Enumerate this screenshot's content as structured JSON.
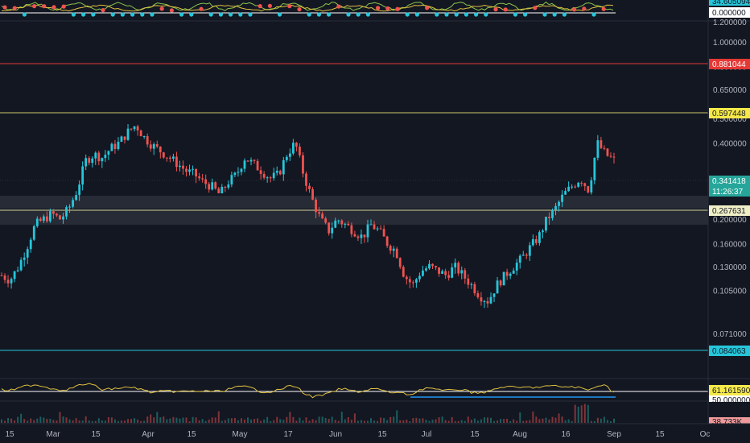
{
  "colors": {
    "background": "#131722",
    "up": "#26c6da",
    "down": "#ef5350",
    "support_line": "#26c6da",
    "resistance_line": "#e53935",
    "fib_line": "#c8c86b",
    "mid_line": "#e6e6a8",
    "rsi_line": "#e0c040",
    "osc_green": "#8bc34a",
    "osc_dot_up": "#26c6da",
    "osc_dot_down": "#ef5350",
    "zone": "#2a2e39"
  },
  "price_axis": {
    "ticks": [
      "1.200000",
      "1.000000",
      "0.800000",
      "0.650000",
      "0.500000",
      "0.400000",
      "0.200000",
      "0.160000",
      "0.130000",
      "0.105000",
      "0.071000"
    ],
    "tick_values": [
      1.2,
      1.0,
      0.8,
      0.65,
      0.5,
      0.4,
      0.2,
      0.16,
      0.13,
      0.105,
      0.071
    ]
  },
  "date_axis": {
    "labels": [
      "15",
      "Mar",
      "15",
      "Apr",
      "15",
      "May",
      "17",
      "Jun",
      "15",
      "Jul",
      "15",
      "Aug",
      "16",
      "Sep",
      "15",
      "Oc"
    ]
  },
  "price_tags": {
    "resistance": {
      "label": "0.881044",
      "value": 0.881044,
      "bg": "#e53935",
      "fg": "#ffffff"
    },
    "fib": {
      "label": "0.597448",
      "value": 0.597448,
      "bg": "#f5e94a",
      "fg": "#131722"
    },
    "current": {
      "label": "0.341418",
      "countdown": "11:26:37",
      "value": 0.341418,
      "bg": "#26a69a",
      "fg": "#ffffff"
    },
    "mid": {
      "label": "0.267631",
      "value": 0.267631,
      "bg": "#f0f0c8",
      "fg": "#131722"
    },
    "support": {
      "label": "0.084063",
      "value": 0.084063,
      "bg": "#26c6da",
      "fg": "#131722"
    }
  },
  "top_panel": {
    "tag_top": {
      "label": "34.605094",
      "bg": "#26c6da",
      "fg": "#131722"
    },
    "tag_zero": {
      "label": "0.000000",
      "bg": "#ffffff",
      "fg": "#131722"
    }
  },
  "rsi_panel": {
    "tag_value": {
      "label": "61.161590",
      "bg": "#f5e94a",
      "fg": "#131722"
    },
    "tag_mid": {
      "label": "50.000000",
      "bg": "#ffffff",
      "fg": "#131722"
    }
  },
  "volume_panel": {
    "tag_value": {
      "label": "38.733K",
      "bg": "#ef9a9a",
      "fg": "#131722"
    }
  },
  "chart_data": {
    "type": "candlestick",
    "scale": "log",
    "x_labels": [
      "15",
      "Mar",
      "15",
      "Apr",
      "15",
      "May",
      "17",
      "Jun",
      "15",
      "Jul",
      "15",
      "Aug",
      "16",
      "Sep",
      "15",
      "Oc"
    ],
    "close_path": [
      0.12,
      0.115,
      0.13,
      0.155,
      0.19,
      0.2,
      0.21,
      0.2,
      0.22,
      0.26,
      0.34,
      0.36,
      0.35,
      0.38,
      0.4,
      0.44,
      0.47,
      0.42,
      0.39,
      0.37,
      0.35,
      0.33,
      0.31,
      0.3,
      0.28,
      0.27,
      0.25,
      0.28,
      0.3,
      0.35,
      0.33,
      0.31,
      0.29,
      0.3,
      0.36,
      0.4,
      0.3,
      0.24,
      0.2,
      0.18,
      0.2,
      0.19,
      0.18,
      0.17,
      0.19,
      0.18,
      0.16,
      0.15,
      0.12,
      0.11,
      0.125,
      0.13,
      0.125,
      0.12,
      0.13,
      0.12,
      0.11,
      0.1,
      0.095,
      0.11,
      0.12,
      0.13,
      0.14,
      0.155,
      0.17,
      0.2,
      0.22,
      0.25,
      0.27,
      0.29,
      0.26,
      0.4,
      0.36,
      0.341
    ],
    "levels": [
      0.881044,
      0.597448,
      0.267631,
      0.084063
    ],
    "zone_upper": [
      0.27,
      0.3
    ],
    "zone_lower": [
      0.235,
      0.26
    ],
    "rsi_last": 61.16159,
    "volume_last": "38.733K"
  }
}
